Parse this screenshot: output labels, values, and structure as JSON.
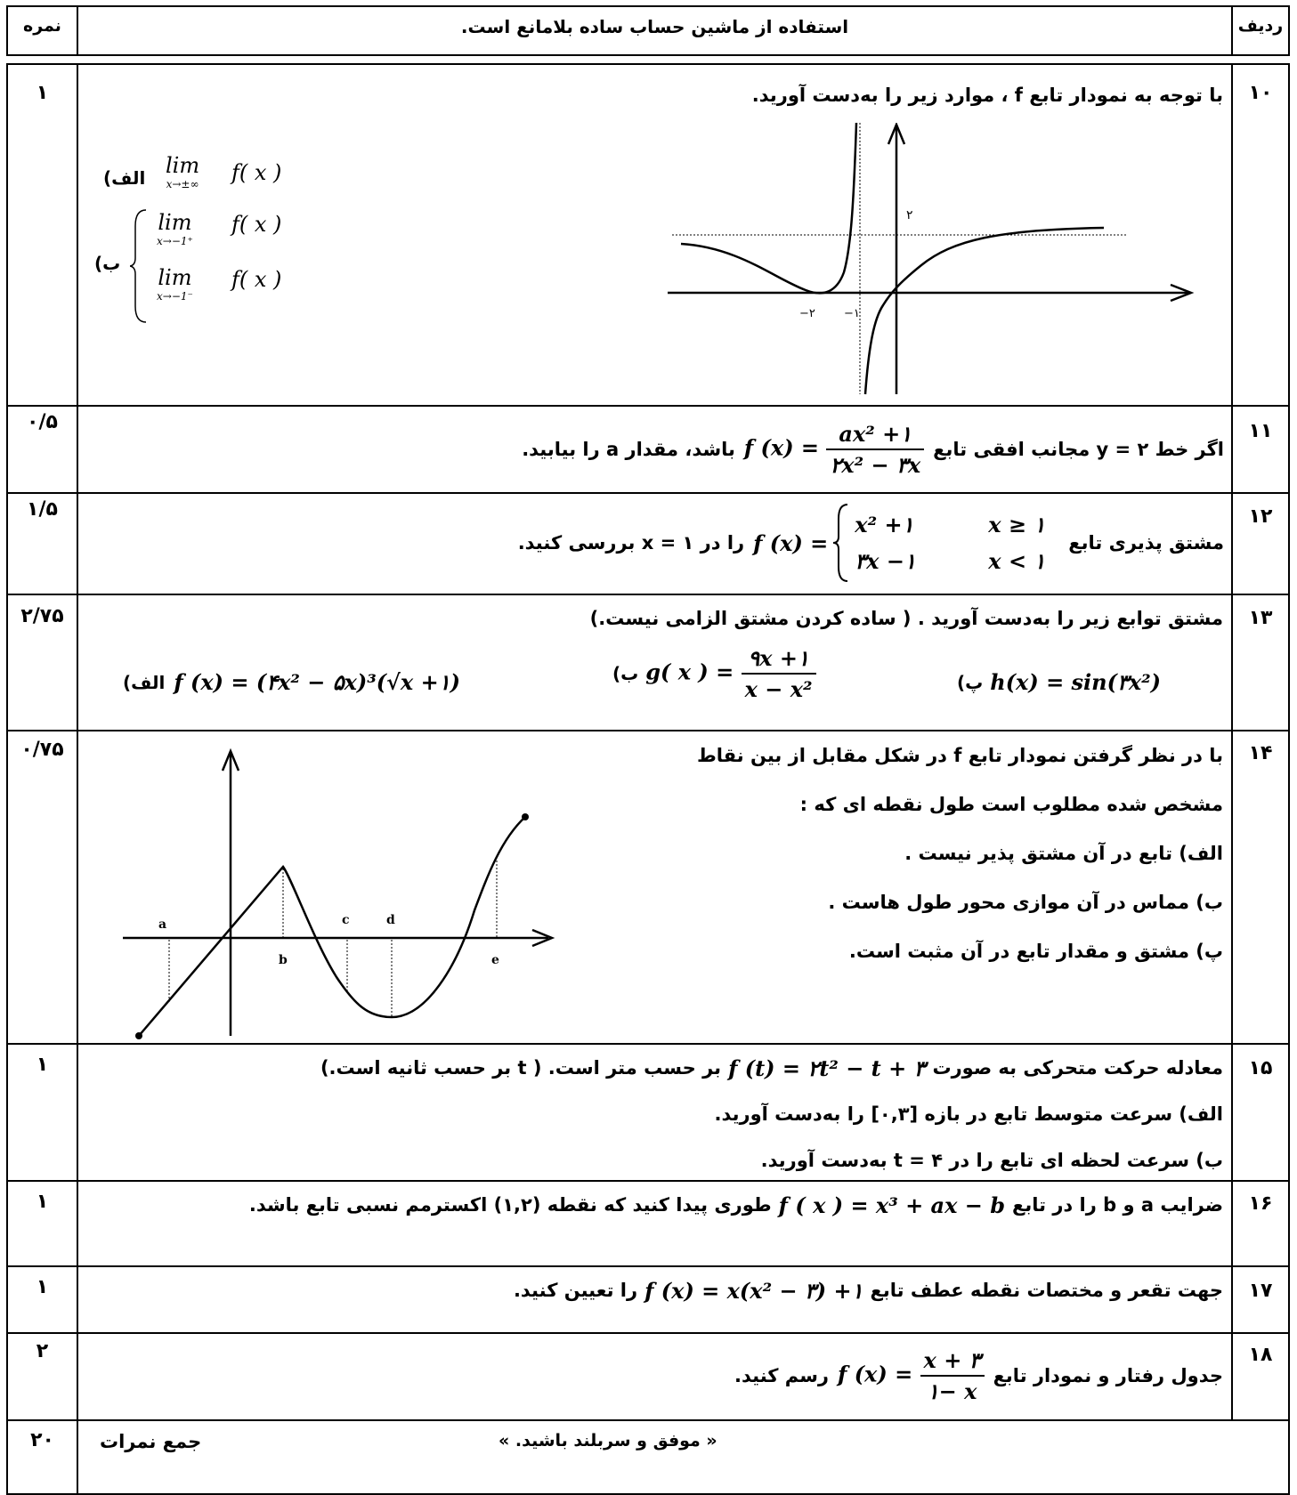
{
  "header": {
    "score_label": "نمره",
    "instruction": "استفاده از ماشین حساب ساده بلامانع است.",
    "row_label": "ردیف"
  },
  "rows": [
    {
      "number": "۱۰",
      "score": "۱",
      "text": "با توجه به نمودار تابع  f ، موارد زیر را به‌دست آورید.",
      "part_a_label": "(الف",
      "part_b_label": "(ب",
      "lim_word": "lim",
      "lim_a_sub": "x→±∞",
      "lim_b1_sub": "x→−1⁺",
      "lim_b2_sub": "x→−1⁻",
      "fx": "f( x )",
      "graph_labels": {
        "y_value": "۲",
        "x_tick_1": "−۲",
        "x_tick_2": "−۱"
      }
    },
    {
      "number": "۱۱",
      "score": "۰/۵",
      "text_before": "اگر خط ۲ = y  مجانب افقی تابع",
      "fx": "f (x) =",
      "numerator": "ax² +۱",
      "denominator": "۲x² − ۳x",
      "text_after": "باشد، مقدار  a  را بیابید."
    },
    {
      "number": "۱۲",
      "score": "۱/۵",
      "text_before": "مشتق پذیری تابع",
      "fx": "f (x) =",
      "case1_expr": "x² +۱",
      "case1_cond": "x ≥ ۱",
      "case2_expr": "۳x −۱",
      "case2_cond": "x < ۱",
      "text_after": "را در ۱ = x  بررسی کنید."
    },
    {
      "number": "۱۳",
      "score": "۲/۷۵",
      "text": "مشتق توابع زیر را به‌دست آورید . ( ساده کردن مشتق الزامی نیست.)",
      "a_label": "(الف",
      "a_expr": "f (x) = (۴x² − ۵x)³(√x +۱)",
      "b_label": "(ب",
      "b_lhs": "g( x ) =",
      "b_num": "۹x +۱",
      "b_den": "x − x²",
      "c_label": "(پ",
      "c_expr": "h(x) = sin(۳x²)"
    },
    {
      "number": "۱۴",
      "score": "۰/۷۵",
      "line1": "با در نظر گرفتن نمودار تابع  f  در شکل مقابل از بین نقاط",
      "line2": "مشخص شده مطلوب است طول نقطه ای که :",
      "line3": "الف) تابع در آن مشتق پذیر نیست .",
      "line4": "ب) مماس در آن موازی محور طول هاست .",
      "line5": "پ) مشتق و مقدار تابع در آن مثبت است.",
      "graph_labels": {
        "a": "a",
        "b": "b",
        "c": "c",
        "d": "d",
        "e": "e"
      }
    },
    {
      "number": "۱۵",
      "score": "۱",
      "line1_before": "معادله حرکت متحرکی به صورت",
      "line1_expr": "f (t) = ۲t² − t + ۳",
      "line1_after": "بر حسب متر است. ( t بر حسب ثانیه است.)",
      "line2": "الف) سرعت متوسط تابع در بازه  [۰,۳]  را به‌دست آورید.",
      "line3": "ب) سرعت لحظه ای تابع را در  ۴ = t  به‌دست آورید."
    },
    {
      "number": "۱۶",
      "score": "۱",
      "text_before": "ضرایب  a  و  b  را در تابع",
      "expr": "f ( x ) = x³ + ax − b",
      "text_after": "طوری پیدا کنید که نقطه  (۱,۲)  اکسترمم نسبی تابع باشد."
    },
    {
      "number": "۱۷",
      "score": "۱",
      "text_before": "جهت تقعر و مختصات نقطه عطف تابع",
      "expr": "f (x) = x(x² − ۳) +۱",
      "text_after": "را تعیین کنید."
    },
    {
      "number": "۱۸",
      "score": "۲",
      "text_before": "جدول رفتار و نمودار تابع",
      "fx": "f (x) =",
      "numerator": "x + ۳",
      "denominator": "۱− x",
      "text_after": "رسم کنید."
    }
  ],
  "footer": {
    "total": "۲۰",
    "total_label": "جمع نمرات",
    "message": "« موفق و سربلند باشید. »"
  }
}
